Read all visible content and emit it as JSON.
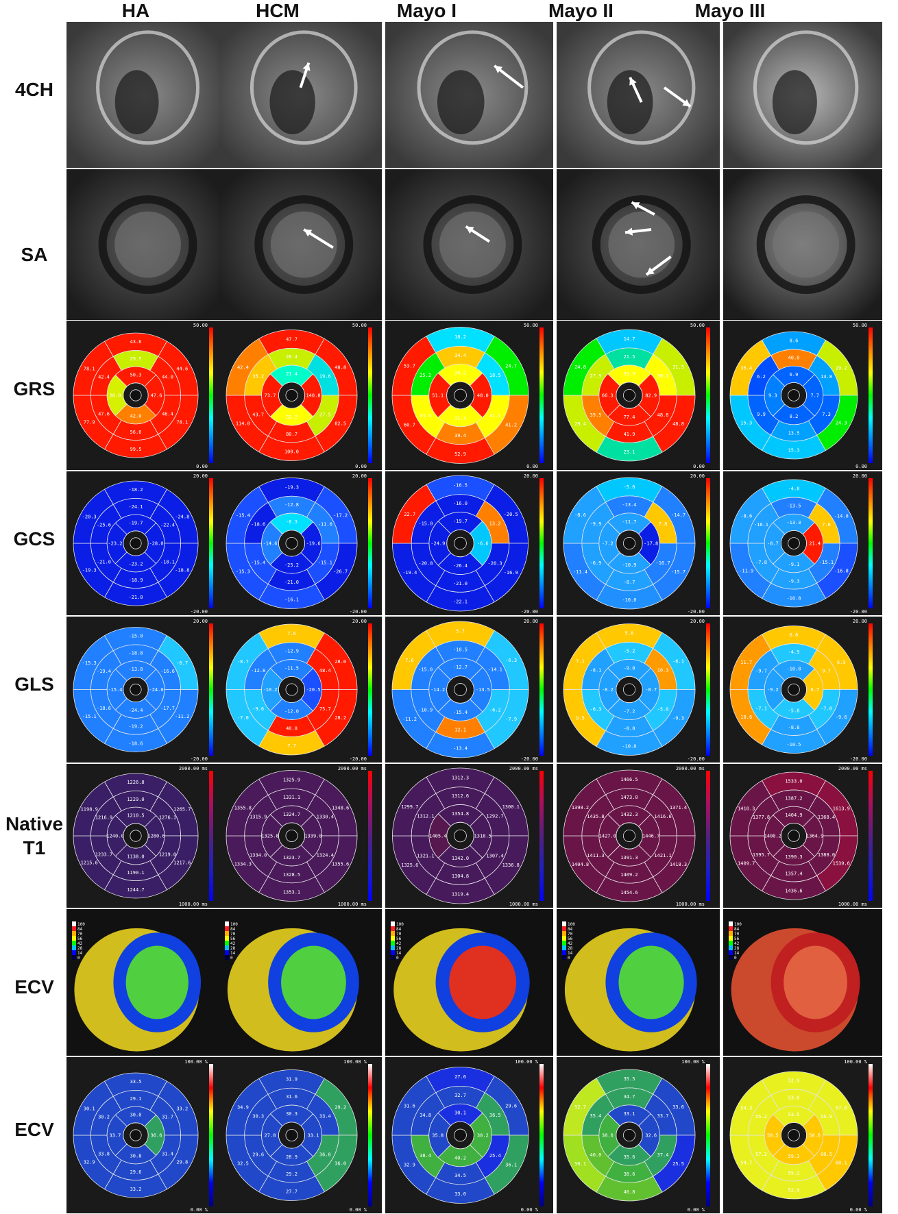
{
  "columns": [
    "HA",
    "HCM",
    "Mayo I",
    "Mayo II",
    "Mayo III"
  ],
  "rows": {
    "r4ch": "4CH",
    "sa": "SA",
    "grs": "GRS",
    "gcs": "GCS",
    "gls": "GLS",
    "t1": [
      "Native",
      "T1"
    ],
    "ecvmap": "ECV",
    "ecvbull": "ECV"
  },
  "bullseye_scales": {
    "grs": {
      "max": "50.00",
      "min": "0.00"
    },
    "gcs": {
      "max": "20.00",
      "min": "-20.00"
    },
    "gls": {
      "max": "20.00",
      "min": "-20.00"
    },
    "t1": {
      "max": "2000.00",
      "min": "1000.00",
      "unit": "ms"
    },
    "ecv": {
      "max": "100.00",
      "min": "0.00",
      "unit": "%"
    }
  },
  "ecv_map_legend": [
    "100",
    "84",
    "70",
    "56",
    "42",
    "28",
    "14",
    "0"
  ],
  "bullseyes": {
    "grs": [
      {
        "values": [
          "43.6",
          "44.6",
          "78.1",
          "99.5",
          "77.9",
          "78.1",
          "29.5",
          "44.0",
          "46.4",
          "56.6",
          "47.6",
          "42.4",
          "50.3",
          "47.6",
          "42.0",
          "28.0"
        ],
        "colors": [
          "#ff1a00",
          "#ff1a00",
          "#ff1a00",
          "#ff1a00",
          "#ff1a00",
          "#ff1a00",
          "#c8ee00",
          "#ff1a00",
          "#ff1a00",
          "#ff1a00",
          "#ff1a00",
          "#ff1a00",
          "#ff1a00",
          "#ff1a00",
          "#ff8000",
          "#d7f000"
        ]
      },
      {
        "values": [
          "47.7",
          "48.8",
          "82.5",
          "100.0",
          "114.0",
          "42.4",
          "28.4",
          "19.6",
          "27.5",
          "80.7",
          "43.7",
          "35.2",
          "21.4",
          "140.8",
          "32.2",
          "73.7"
        ],
        "colors": [
          "#ff1a00",
          "#ff1a00",
          "#ff1a00",
          "#ff1a00",
          "#ff1a00",
          "#ff8000",
          "#c8ee00",
          "#00e0e0",
          "#c8ee00",
          "#ff1a00",
          "#ff1a00",
          "#ffc800",
          "#00ffc8",
          "#ff1a00",
          "#ffff00",
          "#ff1a00"
        ]
      },
      {
        "values": [
          "18.2",
          "24.7",
          "41.2",
          "52.9",
          "60.7",
          "53.7",
          "34.4",
          "18.5",
          "31.1",
          "39.4",
          "33.5",
          "25.2",
          "34.2",
          "48.0",
          "31.3",
          "51.1"
        ],
        "colors": [
          "#00e0ff",
          "#00ee00",
          "#ff8000",
          "#ff1a00",
          "#ff1a00",
          "#ff1a00",
          "#ffc800",
          "#00e0ff",
          "#ffff00",
          "#ff8000",
          "#ffff00",
          "#00ee00",
          "#ffff00",
          "#ff1a00",
          "#ffff00",
          "#ff1a00"
        ]
      },
      {
        "values": [
          "14.7",
          "31.5",
          "48.8",
          "23.1",
          "29.4",
          "24.8",
          "21.5",
          "30.1",
          "48.8",
          "41.9",
          "39.5",
          "27.9",
          "33.9",
          "82.9",
          "77.4",
          "66.3"
        ],
        "colors": [
          "#00c8ff",
          "#c8ee00",
          "#ff1a00",
          "#00e0a0",
          "#c8ee00",
          "#00ee00",
          "#00e0a0",
          "#ffff00",
          "#ff1a00",
          "#ff1a00",
          "#ff8000",
          "#c8ee00",
          "#ffff00",
          "#ff1a00",
          "#ff1a00",
          "#ff1a00"
        ]
      },
      {
        "values": [
          "8.6",
          "29.2",
          "24.3",
          "15.3",
          "15.3",
          "35.4",
          "40.0",
          "13.8",
          "7.3",
          "13.5",
          "9.9",
          "6.2",
          "6.9",
          "7.7",
          "8.2",
          "9.3"
        ],
        "colors": [
          "#00a0ff",
          "#c8ee00",
          "#00ee00",
          "#00c8ff",
          "#00c8ff",
          "#ffc800",
          "#ff8000",
          "#00a0ff",
          "#0064ff",
          "#00a0ff",
          "#0064ff",
          "#0050ff",
          "#0064ff",
          "#0064ff",
          "#0064ff",
          "#0080ff"
        ]
      }
    ],
    "gcs": [
      {
        "values": [
          "-18.2",
          "-24.8",
          "-18.8",
          "-21.0",
          "-19.3",
          "-20.3",
          "-24.1",
          "-22.4",
          "-18.1",
          "-18.9",
          "-21.0",
          "-25.6",
          "-19.7",
          "-28.0",
          "-23.2",
          "-23.2"
        ],
        "colors": [
          "#0a1ee6",
          "#0a1ee6",
          "#0a1ee6",
          "#0a1ee6",
          "#0a1ee6",
          "#0a1ee6",
          "#0a1ee6",
          "#0a1ee6",
          "#0a1ee6",
          "#0a1ee6",
          "#0a1ee6",
          "#0a1ee6",
          "#0a1ee6",
          "#0a1ee6",
          "#0a1ee6",
          "#0a1ee6"
        ]
      },
      {
        "values": [
          "-19.3",
          "-17.2",
          "-26.7",
          "-16.1",
          "-15.3",
          "-15.4",
          "-12.8",
          "-11.6",
          "-15.1",
          "-21.0",
          "-15.4",
          "-18.6",
          "-6.3",
          "-19.6",
          "-25.2",
          "-14.6"
        ],
        "colors": [
          "#0a1ee6",
          "#1a50ff",
          "#0a1ee6",
          "#1a50ff",
          "#1a50ff",
          "#1a50ff",
          "#2080ff",
          "#2080ff",
          "#1a50ff",
          "#0a1ee6",
          "#1a50ff",
          "#0a1ee6",
          "#00e0ff",
          "#0a1ee6",
          "#0a1ee6",
          "#2080ff"
        ]
      },
      {
        "values": [
          "-16.5",
          "-20.5",
          "-16.9",
          "-22.1",
          "-19.4",
          "22.7",
          "-16.0",
          "13.2",
          "-20.3",
          "-21.0",
          "-20.8",
          "-15.0",
          "-19.7",
          "-6.6",
          "-26.4",
          "-24.9"
        ],
        "colors": [
          "#1a50ff",
          "#0a1ee6",
          "#0a1ee6",
          "#0a1ee6",
          "#0a1ee6",
          "#ff1a00",
          "#0a1ee6",
          "#ff8000",
          "#0a1ee6",
          "#0a1ee6",
          "#0a1ee6",
          "#0a1ee6",
          "#0a1ee6",
          "#00c8ff",
          "#0a1ee6",
          "#0a1ee6"
        ]
      },
      {
        "values": [
          "-5.6",
          "-14.7",
          "-15.7",
          "-10.0",
          "-11.4",
          "-8.6",
          "-13.4",
          "7.8",
          "-16.7",
          "-8.7",
          "-6.9",
          "-9.9",
          "-11.7",
          "-17.8",
          "-10.9",
          "-7.2"
        ],
        "colors": [
          "#00c8ff",
          "#2080ff",
          "#2080ff",
          "#2090ff",
          "#2080ff",
          "#20a0ff",
          "#2080ff",
          "#ffc800",
          "#2080ff",
          "#20a0ff",
          "#20a0ff",
          "#20a0ff",
          "#20a0ff",
          "#0a1ee6",
          "#20a0ff",
          "#20a0ff"
        ]
      },
      {
        "values": [
          "-4.8",
          "-14.8",
          "-16.8",
          "-10.8",
          "-11.9",
          "-8.6",
          "-13.5",
          "7.6",
          "-15.1",
          "-9.3",
          "-7.8",
          "-10.1",
          "-13.3",
          "21.4",
          "-9.1",
          "-8.7"
        ],
        "colors": [
          "#00c8ff",
          "#2080ff",
          "#1a50ff",
          "#2090ff",
          "#2080ff",
          "#20a0ff",
          "#2080ff",
          "#ffc800",
          "#2080ff",
          "#20a0ff",
          "#20a0ff",
          "#20a0ff",
          "#20a0ff",
          "#ff1a00",
          "#20a0ff",
          "#20a0ff"
        ]
      }
    ],
    "gls": [
      {
        "values": [
          "-15.0",
          "-6.7",
          "-11.2",
          "-18.6",
          "-15.1",
          "-15.3",
          "-18.8",
          "-16.6",
          "-17.7",
          "-19.2",
          "-18.6",
          "-19.4",
          "-13.8",
          "-24.0",
          "-24.4",
          "-15.4"
        ],
        "colors": [
          "#2080ff",
          "#20c8ff",
          "#2080ff",
          "#2080ff",
          "#2080ff",
          "#2080ff",
          "#2080ff",
          "#2080ff",
          "#2080ff",
          "#2080ff",
          "#2080ff",
          "#2080ff",
          "#2080ff",
          "#2080ff",
          "#2080ff",
          "#2080ff"
        ]
      },
      {
        "values": [
          "7.6",
          "28.0",
          "28.2",
          "7.7",
          "-7.0",
          "-8.7",
          "-12.9",
          "48.4",
          "75.7",
          "40.8",
          "-9.6",
          "-12.8",
          "-11.5",
          "-20.5",
          "-12.0",
          "-10.2"
        ],
        "colors": [
          "#ffc800",
          "#ff1a00",
          "#ff1a00",
          "#ffc800",
          "#20c8ff",
          "#20c8ff",
          "#2080ff",
          "#ff1a00",
          "#ff1a00",
          "#ff1a00",
          "#20c8ff",
          "#2080ff",
          "#2080ff",
          "#1a50ff",
          "#2080ff",
          "#20a0ff"
        ]
      },
      {
        "values": [
          "5.7",
          "-6.3",
          "-7.9",
          "-13.4",
          "-11.2",
          "7.6",
          "-10.5",
          "-14.1",
          "-6.2",
          "12.1",
          "-10.9",
          "-15.0",
          "-12.7",
          "-13.5",
          "-15.4",
          "-14.2"
        ],
        "colors": [
          "#ffc800",
          "#20c8ff",
          "#20c8ff",
          "#2080ff",
          "#2080ff",
          "#ffc800",
          "#2080ff",
          "#2080ff",
          "#20c8ff",
          "#ff8000",
          "#2080ff",
          "#2080ff",
          "#2080ff",
          "#2080ff",
          "#2080ff",
          "#2080ff"
        ]
      },
      {
        "values": [
          "5.8",
          "-6.1",
          "-9.3",
          "-10.0",
          "9.5",
          "7.1",
          "-5.2",
          "10.3",
          "-5.0",
          "-8.0",
          "-6.3",
          "-8.1",
          "-9.0",
          "-8.7",
          "-7.2",
          "-8.2"
        ],
        "colors": [
          "#ffc800",
          "#20c8ff",
          "#20a0ff",
          "#20a0ff",
          "#ffc800",
          "#ffc800",
          "#20c8ff",
          "#ff9a00",
          "#20c8ff",
          "#20a0ff",
          "#20c8ff",
          "#20a0ff",
          "#20a0ff",
          "#20a0ff",
          "#20a0ff",
          "#20a0ff"
        ]
      },
      {
        "values": [
          "6.6",
          "6.9",
          "-9.6",
          "-10.5",
          "10.6",
          "11.7",
          "-4.9",
          "9.7",
          "-7.0",
          "-8.8",
          "-7.1",
          "-9.7",
          "-10.8",
          "8.7",
          "-5.8",
          "-9.2"
        ],
        "colors": [
          "#ffc800",
          "#ffc800",
          "#20a0ff",
          "#20a0ff",
          "#ff9a00",
          "#ff9a00",
          "#20c8ff",
          "#ffc800",
          "#20c8ff",
          "#20a0ff",
          "#20c8ff",
          "#20a0ff",
          "#20a0ff",
          "#ffc800",
          "#20c8ff",
          "#20a0ff"
        ]
      }
    ],
    "t1": [
      {
        "values": [
          "1226.8",
          "1265.7",
          "1217.6",
          "1244.7",
          "1215.6",
          "1198.9",
          "1229.0",
          "1276.1",
          "1219.0",
          "1190.1",
          "1233.7",
          "1216.9",
          "1210.5",
          "1280.6",
          "1138.0",
          "1240.0"
        ],
        "colors": [
          "#3a1f66",
          "#3a1f66",
          "#3a1f66",
          "#3a1f66",
          "#3a1f66",
          "#3a1f66",
          "#3a1f66",
          "#3a1f66",
          "#3a1f66",
          "#3a1f66",
          "#3a1f66",
          "#3a1f66",
          "#3a1f66",
          "#3a1f66",
          "#3a1f66",
          "#3a1f66"
        ]
      },
      {
        "values": [
          "1325.9",
          "1348.6",
          "1355.6",
          "1353.1",
          "1334.3",
          "1355.8",
          "1331.1",
          "1330.4",
          "1324.4",
          "1328.5",
          "1334.0",
          "1315.9",
          "1324.7",
          "1339.0",
          "1323.7",
          "1325.8"
        ],
        "colors": [
          "#4a1a5a",
          "#4a1a5a",
          "#4a1a5a",
          "#4a1a5a",
          "#4a1a5a",
          "#4a1a5a",
          "#4a1a5a",
          "#4a1a5a",
          "#4a1a5a",
          "#4a1a5a",
          "#4a1a5a",
          "#4a1a5a",
          "#4a1a5a",
          "#4a1a5a",
          "#4a1a5a",
          "#4a1a5a"
        ]
      },
      {
        "values": [
          "1312.3",
          "1300.1",
          "1336.8",
          "1319.4",
          "1325.6",
          "1299.7",
          "1312.6",
          "1292.7",
          "1307.4",
          "1304.8",
          "1321.1",
          "1312.1",
          "1354.8",
          "1318.5",
          "1342.0",
          "1405.4"
        ],
        "colors": [
          "#471a5c",
          "#471a5c",
          "#471a5c",
          "#471a5c",
          "#471a5c",
          "#471a5c",
          "#471a5c",
          "#471a5c",
          "#471a5c",
          "#471a5c",
          "#471a5c",
          "#471a5c",
          "#471a5c",
          "#471a5c",
          "#471a5c",
          "#56184e"
        ]
      },
      {
        "values": [
          "1466.5",
          "1371.4",
          "1418.3",
          "1454.6",
          "1404.8",
          "1398.2",
          "1473.0",
          "1416.6",
          "1421.1",
          "1409.2",
          "1411.3",
          "1435.8",
          "1432.3",
          "1446.7",
          "1391.3",
          "1427.0"
        ],
        "colors": [
          "#6a1548",
          "#6a1548",
          "#6a1548",
          "#6a1548",
          "#6a1548",
          "#6a1548",
          "#6a1548",
          "#6a1548",
          "#6a1548",
          "#6a1548",
          "#6a1548",
          "#6a1548",
          "#6a1548",
          "#6a1548",
          "#6a1548",
          "#6a1548"
        ]
      },
      {
        "values": [
          "1533.0",
          "1613.9",
          "1539.6",
          "1436.6",
          "1409.7",
          "1410.3",
          "1387.2",
          "1368.4",
          "1388.0",
          "1357.4",
          "1395.7",
          "1377.8",
          "1404.9",
          "1364.9",
          "1390.3",
          "1400.2"
        ],
        "colors": [
          "#8a1040",
          "#8a1040",
          "#8a1040",
          "#6a1548",
          "#6a1548",
          "#6a1548",
          "#6a1548",
          "#6a1548",
          "#6a1548",
          "#6a1548",
          "#6a1548",
          "#6a1548",
          "#6a1548",
          "#6a1548",
          "#6a1548",
          "#6a1548"
        ]
      }
    ],
    "ecv": [
      {
        "values": [
          "33.5",
          "33.2",
          "29.8",
          "33.2",
          "32.9",
          "30.1",
          "29.1",
          "31.7",
          "31.4",
          "29.6",
          "33.8",
          "30.2",
          "30.0",
          "36.6",
          "30.8",
          "33.7"
        ],
        "colors": [
          "#2048c8",
          "#2048c8",
          "#2048c8",
          "#2048c8",
          "#2048c8",
          "#2048c8",
          "#2048c8",
          "#2048c8",
          "#2048c8",
          "#2048c8",
          "#2048c8",
          "#2048c8",
          "#2048c8",
          "#30a060",
          "#2048c8",
          "#2048c8"
        ]
      },
      {
        "values": [
          "31.9",
          "29.2",
          "36.0",
          "27.7",
          "32.5",
          "34.9",
          "31.6",
          "33.4",
          "36.0",
          "29.2",
          "29.6",
          "30.3",
          "30.3",
          "33.1",
          "28.9",
          "27.8"
        ],
        "colors": [
          "#2048c8",
          "#30a060",
          "#30a060",
          "#2048c8",
          "#2048c8",
          "#2048c8",
          "#2048c8",
          "#2048c8",
          "#30a060",
          "#2048c8",
          "#2048c8",
          "#2048c8",
          "#2048c8",
          "#2048c8",
          "#2048c8",
          "#2048c8"
        ]
      },
      {
        "values": [
          "27.6",
          "29.6",
          "36.1",
          "33.0",
          "32.9",
          "31.6",
          "32.7",
          "36.5",
          "25.4",
          "34.5",
          "38.4",
          "34.8",
          "30.1",
          "38.2",
          "40.2",
          "35.8"
        ],
        "colors": [
          "#1a30e0",
          "#2048c8",
          "#30a060",
          "#2048c8",
          "#2048c8",
          "#2048c8",
          "#2048c8",
          "#30a060",
          "#1a30e0",
          "#2048c8",
          "#40b040",
          "#2048c8",
          "#1a30e0",
          "#40b040",
          "#40b040",
          "#2048c8"
        ]
      },
      {
        "values": [
          "35.5",
          "33.6",
          "25.5",
          "40.8",
          "50.1",
          "52.7",
          "34.7",
          "33.7",
          "37.4",
          "38.6",
          "40.0",
          "35.4",
          "33.1",
          "32.6",
          "35.6",
          "38.6"
        ],
        "colors": [
          "#30a060",
          "#2048c8",
          "#1a30e0",
          "#60c030",
          "#a0e020",
          "#c0e820",
          "#30a060",
          "#2048c8",
          "#30a060",
          "#40b040",
          "#60c030",
          "#30a060",
          "#2048c8",
          "#2048c8",
          "#30a060",
          "#40b040"
        ]
      },
      {
        "values": [
          "52.9",
          "57.0",
          "60.1",
          "52.9",
          "54.7",
          "54.3",
          "53.0",
          "55.9",
          "60.5",
          "55.2",
          "57.2",
          "55.2",
          "53.5",
          "58.6",
          "59.3",
          "58.5"
        ],
        "colors": [
          "#e8f020",
          "#e8f020",
          "#ffc800",
          "#e8f020",
          "#e8f020",
          "#e8f020",
          "#e8f020",
          "#e8f020",
          "#ffc800",
          "#e8f020",
          "#e8f020",
          "#e8f020",
          "#e8f020",
          "#ffc800",
          "#ffc800",
          "#ffc800"
        ]
      }
    ]
  }
}
